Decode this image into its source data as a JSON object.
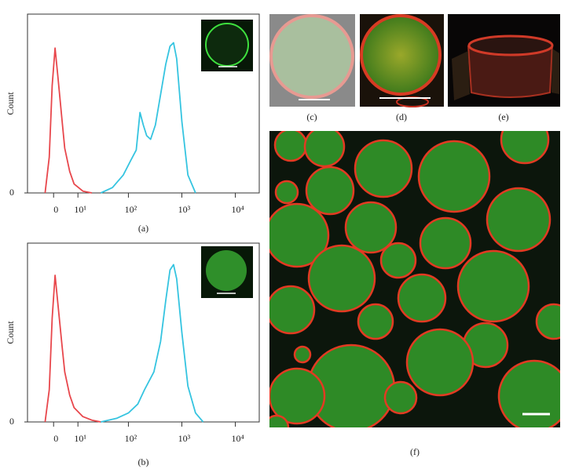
{
  "chart_data": [
    {
      "type": "line",
      "caption": "(a)",
      "ylabel": "Count",
      "xlim": [
        -11,
        28000
      ],
      "xticks": [
        0,
        {
          "value": 10,
          "label": "10¹"
        },
        {
          "value": 100,
          "label": "10²"
        },
        {
          "value": 1000,
          "label": "10³"
        },
        {
          "value": 10000,
          "label": "10⁴"
        }
      ],
      "ylim": [
        0,
        100
      ],
      "yticks": [
        0
      ],
      "series": [
        {
          "color": "#e8474c",
          "x": [
            -3,
            -1.5,
            -0.5,
            0.5,
            1.5,
            3,
            4,
            6,
            8,
            13,
            20
          ],
          "values": [
            0,
            20,
            60,
            81,
            65,
            40,
            25,
            12,
            5,
            1,
            0
          ]
        },
        {
          "color": "#35c4e0",
          "x": [
            30,
            50,
            80,
            110,
            140,
            165,
            190,
            220,
            260,
            320,
            400,
            500,
            600,
            700,
            800,
            1000,
            1300,
            1800
          ],
          "values": [
            0,
            3,
            10,
            18,
            24,
            45,
            38,
            32,
            30,
            38,
            55,
            72,
            82,
            84,
            75,
            40,
            10,
            0
          ]
        }
      ]
    },
    {
      "type": "line",
      "caption": "(b)",
      "ylabel": "Count",
      "xlim": [
        -11,
        28000
      ],
      "xticks": [
        0,
        {
          "value": 10,
          "label": "10¹"
        },
        {
          "value": 100,
          "label": "10²"
        },
        {
          "value": 1000,
          "label": "10³"
        },
        {
          "value": 10000,
          "label": "10⁴"
        }
      ],
      "ylim": [
        0,
        100
      ],
      "yticks": [
        0
      ],
      "series": [
        {
          "color": "#e8474c",
          "x": [
            -3,
            -1.5,
            -0.5,
            0.5,
            1.5,
            3,
            4,
            6,
            8,
            13,
            20,
            30
          ],
          "values": [
            0,
            18,
            58,
            82,
            66,
            42,
            28,
            15,
            8,
            3,
            1,
            0
          ]
        },
        {
          "color": "#35c4e0",
          "x": [
            30,
            60,
            100,
            150,
            200,
            300,
            400,
            500,
            600,
            700,
            800,
            1000,
            1300,
            1800,
            2500
          ],
          "values": [
            0,
            2,
            5,
            10,
            18,
            28,
            45,
            68,
            85,
            88,
            80,
            50,
            20,
            5,
            0
          ]
        }
      ]
    }
  ],
  "image_panels": {
    "labels": [
      "(c)",
      "(d)",
      "(e)",
      "(f)"
    ]
  }
}
